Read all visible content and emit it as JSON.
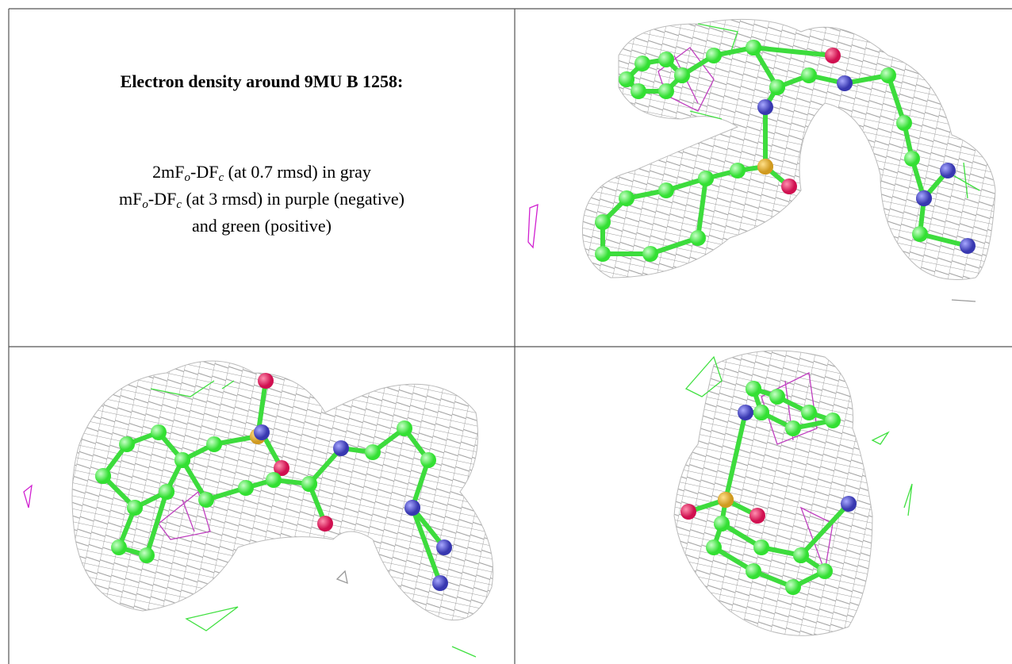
{
  "caption": {
    "title": "Electron density around 9MU B 1258:",
    "lines": [
      [
        "2mF",
        "o",
        "-DF",
        "c",
        " (at 0.7 rmsd) in gray"
      ],
      [
        "mF",
        "o",
        "-DF",
        "c",
        " (at 3 rmsd) in purple (negative)"
      ],
      [
        "and green (positive)"
      ]
    ]
  }
}
